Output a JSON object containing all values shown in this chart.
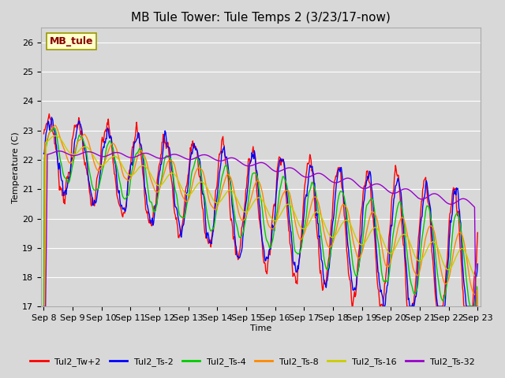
{
  "title": "MB Tule Tower: Tule Temps 2 (3/23/17-now)",
  "xlabel": "Time",
  "ylabel": "Temperature (C)",
  "ylim": [
    17.0,
    26.5
  ],
  "yticks": [
    17.0,
    18.0,
    19.0,
    20.0,
    21.0,
    22.0,
    23.0,
    24.0,
    25.0,
    26.0
  ],
  "x_labels": [
    "Sep 8",
    "Sep 9",
    "Sep 10",
    "Sep 11",
    "Sep 12",
    "Sep 13",
    "Sep 14",
    "Sep 15",
    "Sep 16",
    "Sep 17",
    "Sep 18",
    "Sep 19",
    "Sep 20",
    "Sep 21",
    "Sep 22",
    "Sep 23"
  ],
  "series_colors": {
    "Tul2_Tw+2": "#ff0000",
    "Tul2_Ts-2": "#0000ff",
    "Tul2_Ts-4": "#00cc00",
    "Tul2_Ts-8": "#ff8800",
    "Tul2_Ts-16": "#cccc00",
    "Tul2_Ts-32": "#9900cc"
  },
  "series_order": [
    "Tul2_Tw+2",
    "Tul2_Ts-2",
    "Tul2_Ts-4",
    "Tul2_Ts-8",
    "Tul2_Ts-16",
    "Tul2_Ts-32"
  ],
  "legend_label": "MB_tule",
  "legend_box_color": "#ffffcc",
  "legend_box_edge": "#999900",
  "legend_text_color": "#880000",
  "bg_color": "#d8d8d8",
  "plot_bg_color": "#d8d8d8",
  "grid_color": "#ffffff",
  "title_fontsize": 11,
  "axis_fontsize": 8,
  "legend_fontsize": 8,
  "linewidth": 1.0,
  "num_days": 15,
  "pts_per_day": 48
}
